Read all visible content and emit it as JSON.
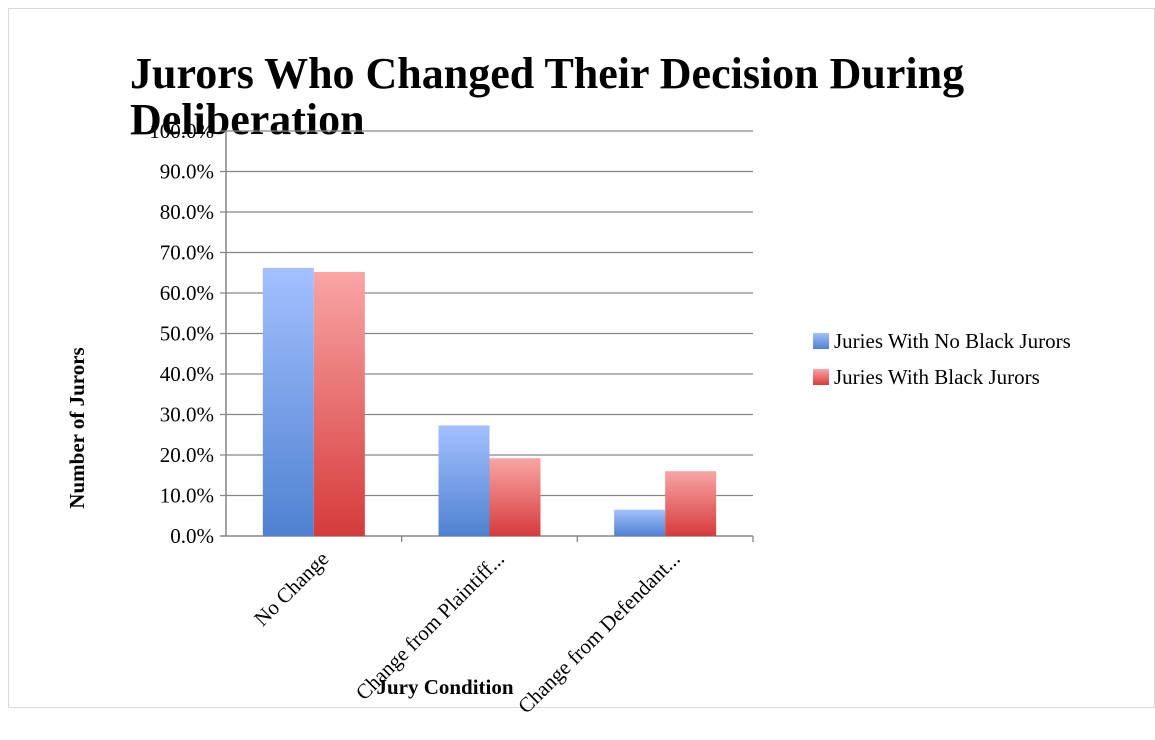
{
  "chart_data": {
    "type": "bar",
    "title": "Jurors Who Changed Their Decision During Deliberation",
    "title_lines": [
      "Jurors Who Changed Their Decision During",
      "Deliberation"
    ],
    "xlabel": "Jury Condition",
    "ylabel": "Number of Jurors",
    "categories": [
      "No Change",
      "Change from Plaintiff...",
      "Change from Defendant..."
    ],
    "series": [
      {
        "name": "Juries With No Black Jurors",
        "values": [
          66.2,
          27.3,
          6.5
        ],
        "color": "#4f81d0",
        "color_light": "#a3c0ff"
      },
      {
        "name": "Juries With Black Jurors",
        "values": [
          65.2,
          19.2,
          16.0
        ],
        "color": "#d63b3b",
        "color_light": "#f9a5a5"
      }
    ],
    "ylim": [
      0,
      100
    ],
    "yticks": [
      "0.0%",
      "10.0%",
      "20.0%",
      "30.0%",
      "40.0%",
      "50.0%",
      "60.0%",
      "70.0%",
      "80.0%",
      "90.0%",
      "100.0%"
    ],
    "grid": true,
    "legend_position": "right"
  }
}
